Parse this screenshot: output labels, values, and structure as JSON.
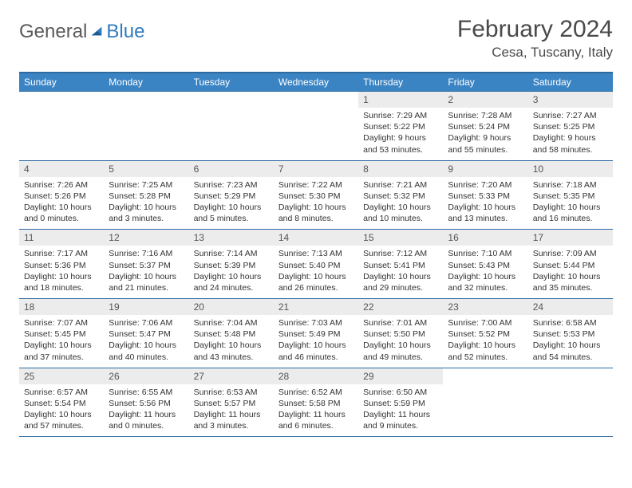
{
  "logo": {
    "text1": "General",
    "text2": "Blue"
  },
  "title": "February 2024",
  "location": "Cesa, Tuscany, Italy",
  "colors": {
    "header_bg": "#3b84c4",
    "header_border": "#2c6aa0",
    "daynum_bg": "#ececec",
    "text_muted": "#555555",
    "logo_gray": "#5a5a5a",
    "logo_blue": "#2f7bbf"
  },
  "weekdays": [
    "Sunday",
    "Monday",
    "Tuesday",
    "Wednesday",
    "Thursday",
    "Friday",
    "Saturday"
  ],
  "weeks": [
    [
      {
        "empty": true
      },
      {
        "empty": true
      },
      {
        "empty": true
      },
      {
        "empty": true
      },
      {
        "day": "1",
        "sunrise": "7:29 AM",
        "sunset": "5:22 PM",
        "daylight": "9 hours and 53 minutes."
      },
      {
        "day": "2",
        "sunrise": "7:28 AM",
        "sunset": "5:24 PM",
        "daylight": "9 hours and 55 minutes."
      },
      {
        "day": "3",
        "sunrise": "7:27 AM",
        "sunset": "5:25 PM",
        "daylight": "9 hours and 58 minutes."
      }
    ],
    [
      {
        "day": "4",
        "sunrise": "7:26 AM",
        "sunset": "5:26 PM",
        "daylight": "10 hours and 0 minutes."
      },
      {
        "day": "5",
        "sunrise": "7:25 AM",
        "sunset": "5:28 PM",
        "daylight": "10 hours and 3 minutes."
      },
      {
        "day": "6",
        "sunrise": "7:23 AM",
        "sunset": "5:29 PM",
        "daylight": "10 hours and 5 minutes."
      },
      {
        "day": "7",
        "sunrise": "7:22 AM",
        "sunset": "5:30 PM",
        "daylight": "10 hours and 8 minutes."
      },
      {
        "day": "8",
        "sunrise": "7:21 AM",
        "sunset": "5:32 PM",
        "daylight": "10 hours and 10 minutes."
      },
      {
        "day": "9",
        "sunrise": "7:20 AM",
        "sunset": "5:33 PM",
        "daylight": "10 hours and 13 minutes."
      },
      {
        "day": "10",
        "sunrise": "7:18 AM",
        "sunset": "5:35 PM",
        "daylight": "10 hours and 16 minutes."
      }
    ],
    [
      {
        "day": "11",
        "sunrise": "7:17 AM",
        "sunset": "5:36 PM",
        "daylight": "10 hours and 18 minutes."
      },
      {
        "day": "12",
        "sunrise": "7:16 AM",
        "sunset": "5:37 PM",
        "daylight": "10 hours and 21 minutes."
      },
      {
        "day": "13",
        "sunrise": "7:14 AM",
        "sunset": "5:39 PM",
        "daylight": "10 hours and 24 minutes."
      },
      {
        "day": "14",
        "sunrise": "7:13 AM",
        "sunset": "5:40 PM",
        "daylight": "10 hours and 26 minutes."
      },
      {
        "day": "15",
        "sunrise": "7:12 AM",
        "sunset": "5:41 PM",
        "daylight": "10 hours and 29 minutes."
      },
      {
        "day": "16",
        "sunrise": "7:10 AM",
        "sunset": "5:43 PM",
        "daylight": "10 hours and 32 minutes."
      },
      {
        "day": "17",
        "sunrise": "7:09 AM",
        "sunset": "5:44 PM",
        "daylight": "10 hours and 35 minutes."
      }
    ],
    [
      {
        "day": "18",
        "sunrise": "7:07 AM",
        "sunset": "5:45 PM",
        "daylight": "10 hours and 37 minutes."
      },
      {
        "day": "19",
        "sunrise": "7:06 AM",
        "sunset": "5:47 PM",
        "daylight": "10 hours and 40 minutes."
      },
      {
        "day": "20",
        "sunrise": "7:04 AM",
        "sunset": "5:48 PM",
        "daylight": "10 hours and 43 minutes."
      },
      {
        "day": "21",
        "sunrise": "7:03 AM",
        "sunset": "5:49 PM",
        "daylight": "10 hours and 46 minutes."
      },
      {
        "day": "22",
        "sunrise": "7:01 AM",
        "sunset": "5:50 PM",
        "daylight": "10 hours and 49 minutes."
      },
      {
        "day": "23",
        "sunrise": "7:00 AM",
        "sunset": "5:52 PM",
        "daylight": "10 hours and 52 minutes."
      },
      {
        "day": "24",
        "sunrise": "6:58 AM",
        "sunset": "5:53 PM",
        "daylight": "10 hours and 54 minutes."
      }
    ],
    [
      {
        "day": "25",
        "sunrise": "6:57 AM",
        "sunset": "5:54 PM",
        "daylight": "10 hours and 57 minutes."
      },
      {
        "day": "26",
        "sunrise": "6:55 AM",
        "sunset": "5:56 PM",
        "daylight": "11 hours and 0 minutes."
      },
      {
        "day": "27",
        "sunrise": "6:53 AM",
        "sunset": "5:57 PM",
        "daylight": "11 hours and 3 minutes."
      },
      {
        "day": "28",
        "sunrise": "6:52 AM",
        "sunset": "5:58 PM",
        "daylight": "11 hours and 6 minutes."
      },
      {
        "day": "29",
        "sunrise": "6:50 AM",
        "sunset": "5:59 PM",
        "daylight": "11 hours and 9 minutes."
      },
      {
        "empty": true
      },
      {
        "empty": true
      }
    ]
  ],
  "labels": {
    "sunrise": "Sunrise:",
    "sunset": "Sunset:",
    "daylight": "Daylight:"
  }
}
